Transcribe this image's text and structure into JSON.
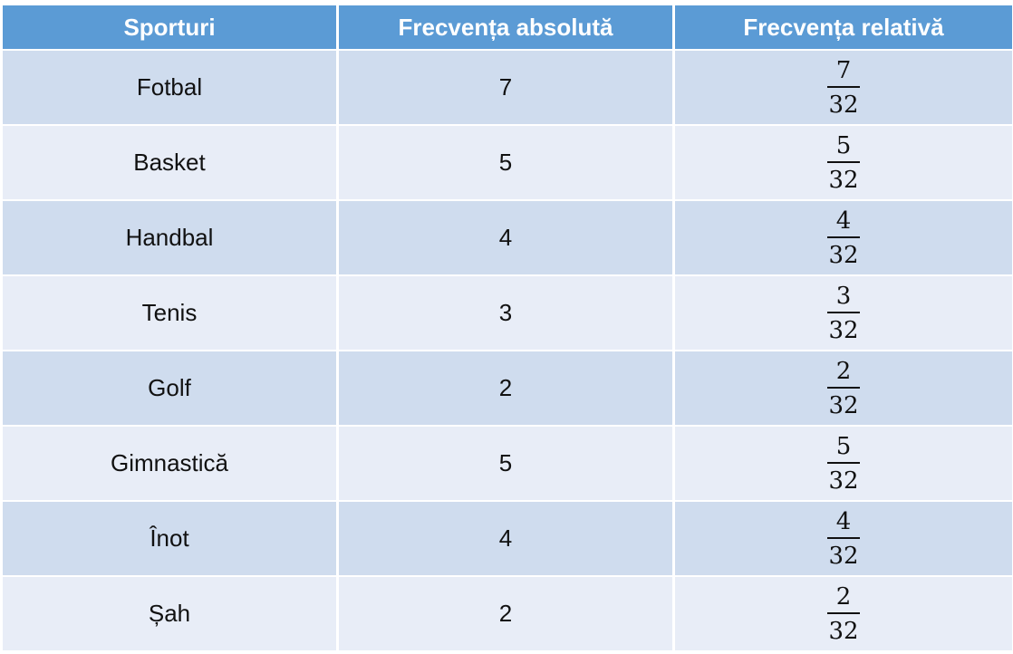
{
  "table": {
    "headers": [
      "Sporturi",
      "Frecvența absolută",
      "Frecvența relativă"
    ],
    "rows": [
      {
        "sport": "Fotbal",
        "absolute": "7",
        "rel_num": "7",
        "rel_den": "32"
      },
      {
        "sport": "Basket",
        "absolute": "5",
        "rel_num": "5",
        "rel_den": "32"
      },
      {
        "sport": "Handbal",
        "absolute": "4",
        "rel_num": "4",
        "rel_den": "32"
      },
      {
        "sport": "Tenis",
        "absolute": "3",
        "rel_num": "3",
        "rel_den": "32"
      },
      {
        "sport": "Golf",
        "absolute": "2",
        "rel_num": "2",
        "rel_den": "32"
      },
      {
        "sport": "Gimnastică",
        "absolute": "5",
        "rel_num": "5",
        "rel_den": "32"
      },
      {
        "sport": "Înot",
        "absolute": "4",
        "rel_num": "4",
        "rel_den": "32"
      },
      {
        "sport": "Șah",
        "absolute": "2",
        "rel_num": "2",
        "rel_den": "32"
      }
    ]
  },
  "colors": {
    "header": "#5b9bd5",
    "row_odd": "#cfdcee",
    "row_even": "#e8edf7"
  }
}
